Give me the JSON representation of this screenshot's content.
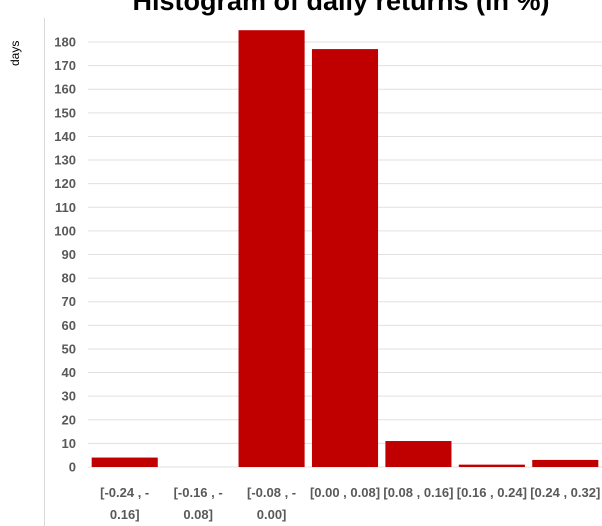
{
  "chart_data": {
    "type": "bar",
    "title": "Histogram of daily returns (in %)",
    "ylabel": "days",
    "xlabel": "",
    "categories": [
      "[-0.24 , -0.16]",
      "[-0.16 , -0.08]",
      "[-0.08 , -0.00]",
      "[0.00 , 0.08]",
      "[0.08 , 0.16]",
      "[0.16 , 0.24]",
      "[0.24 , 0.32]"
    ],
    "category_lines": [
      [
        "[-0.24 , -",
        "0.16]"
      ],
      [
        "[-0.16 , -",
        "0.08]"
      ],
      [
        "[-0.08 , -",
        "0.00]"
      ],
      [
        "[0.00 , 0.08]"
      ],
      [
        "[0.08 , 0.16]"
      ],
      [
        "[0.16 , 0.24]"
      ],
      [
        "[0.24 , 0.32]"
      ]
    ],
    "values": [
      4,
      0,
      185,
      177,
      11,
      1,
      3
    ],
    "ylim": [
      0,
      190
    ],
    "yticks": [
      0,
      10,
      20,
      30,
      40,
      50,
      60,
      70,
      80,
      90,
      100,
      110,
      120,
      130,
      140,
      150,
      160,
      170,
      180
    ],
    "grid": true,
    "bar_color": "#c00000",
    "grid_color": "#e0e0e0"
  }
}
